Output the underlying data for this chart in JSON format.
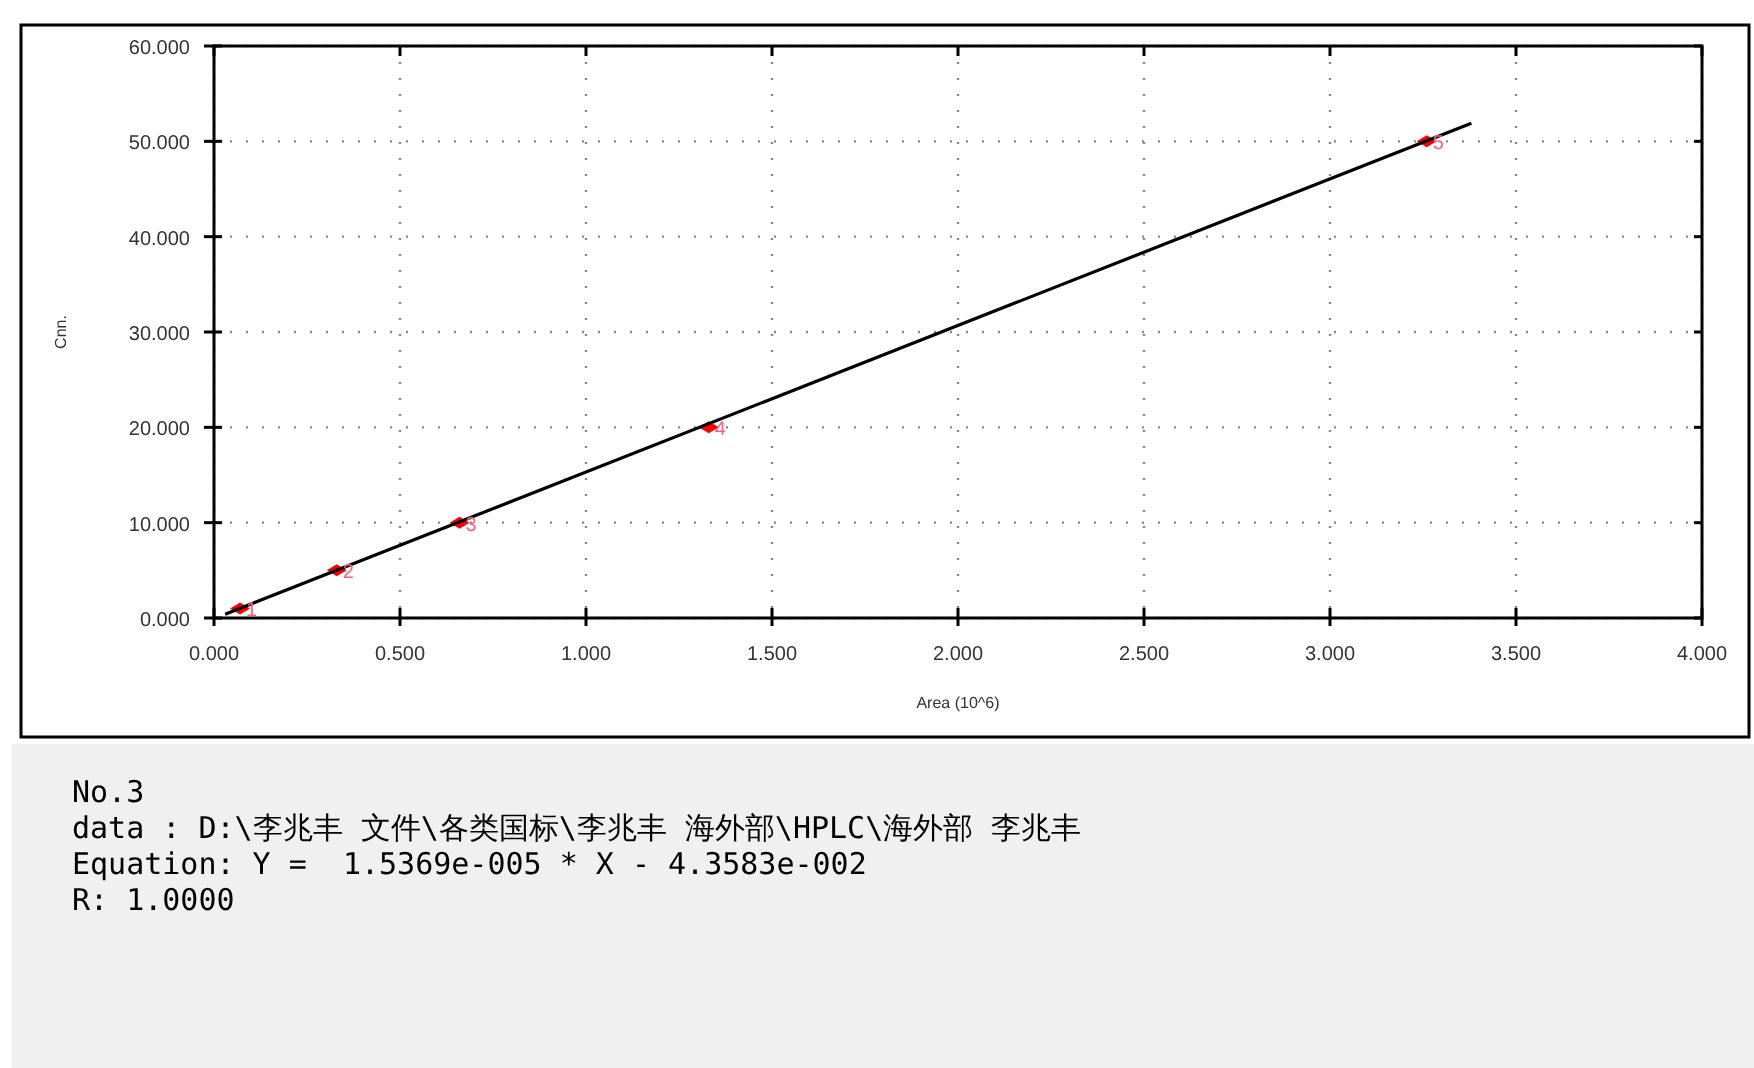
{
  "chart_data": {
    "type": "scatter",
    "xlabel": "Area (10^6)",
    "ylabel": "Cnn.",
    "xlim": [
      0,
      4
    ],
    "ylim": [
      0,
      60
    ],
    "xticks": [
      {
        "value": 0,
        "label": "0.000"
      },
      {
        "value": 0.5,
        "label": "0.500"
      },
      {
        "value": 1,
        "label": "1.000"
      },
      {
        "value": 1.5,
        "label": "1.500"
      },
      {
        "value": 2,
        "label": "2.000"
      },
      {
        "value": 2.5,
        "label": "2.500"
      },
      {
        "value": 3,
        "label": "3.000"
      },
      {
        "value": 3.5,
        "label": "3.500"
      },
      {
        "value": 4,
        "label": "4.000"
      }
    ],
    "yticks": [
      {
        "value": 0,
        "label": "0.000"
      },
      {
        "value": 10,
        "label": "10.000"
      },
      {
        "value": 20,
        "label": "20.000"
      },
      {
        "value": 30,
        "label": "30.000"
      },
      {
        "value": 40,
        "label": "40.000"
      },
      {
        "value": 50,
        "label": "50.000"
      },
      {
        "value": 60,
        "label": "60.000"
      }
    ],
    "grid": true,
    "series": [
      {
        "marker": "diamond",
        "color": "#ff0000",
        "x": [
          0.07,
          0.33,
          0.66,
          1.33,
          3.26
        ],
        "values": [
          1,
          5,
          10,
          20,
          50
        ]
      },
      {
        "type": "line",
        "color": "#000000",
        "x": [
          0.03,
          3.38
        ],
        "values": [
          0.4,
          51.9
        ]
      }
    ],
    "annotations": [
      {
        "text": "1",
        "x": 0.07,
        "y": 1
      },
      {
        "text": "2",
        "x": 0.33,
        "y": 5
      },
      {
        "text": "3",
        "x": 0.66,
        "y": 10
      },
      {
        "text": "4",
        "x": 1.33,
        "y": 20
      },
      {
        "text": "5",
        "x": 3.26,
        "y": 50
      },
      "No.3",
      "data : D:\\李兆丰 文件\\各类国标\\李兆丰 海外部\\HPLC\\海外部 李兆丰",
      "Equation: Y =  1.5369e-005 * X - 4.3583e-002",
      "R: 1.0000"
    ]
  }
}
